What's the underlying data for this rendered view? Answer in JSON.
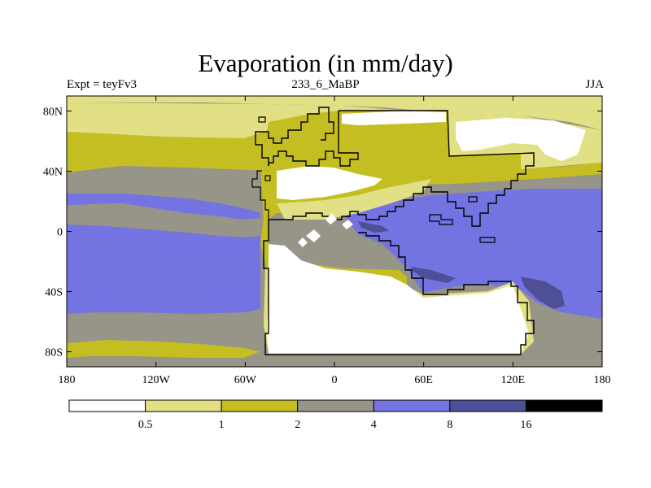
{
  "title": "Evaporation (in mm/day)",
  "subtitle_left": "Expt = teyFv3",
  "subtitle_center": "233_6_MaBP",
  "subtitle_right": "JJA",
  "y_ticks": [
    {
      "label": "80N",
      "lat": 80
    },
    {
      "label": "40N",
      "lat": 40
    },
    {
      "label": "0",
      "lat": 0
    },
    {
      "label": "40S",
      "lat": -40
    },
    {
      "label": "80S",
      "lat": -80
    }
  ],
  "x_ticks": [
    {
      "label": "180",
      "lon": -180
    },
    {
      "label": "120W",
      "lon": -120
    },
    {
      "label": "60W",
      "lon": -60
    },
    {
      "label": "0",
      "lon": 0
    },
    {
      "label": "60E",
      "lon": 60
    },
    {
      "label": "120E",
      "lon": 120
    },
    {
      "label": "180",
      "lon": 180
    }
  ],
  "colorbar": {
    "colors": [
      "#ffffff",
      "#e2e084",
      "#c4be22",
      "#979488",
      "#7373e2",
      "#4f4f97",
      "#000000"
    ],
    "labels": [
      "0.5",
      "1",
      "2",
      "4",
      "8",
      "16"
    ]
  }
}
